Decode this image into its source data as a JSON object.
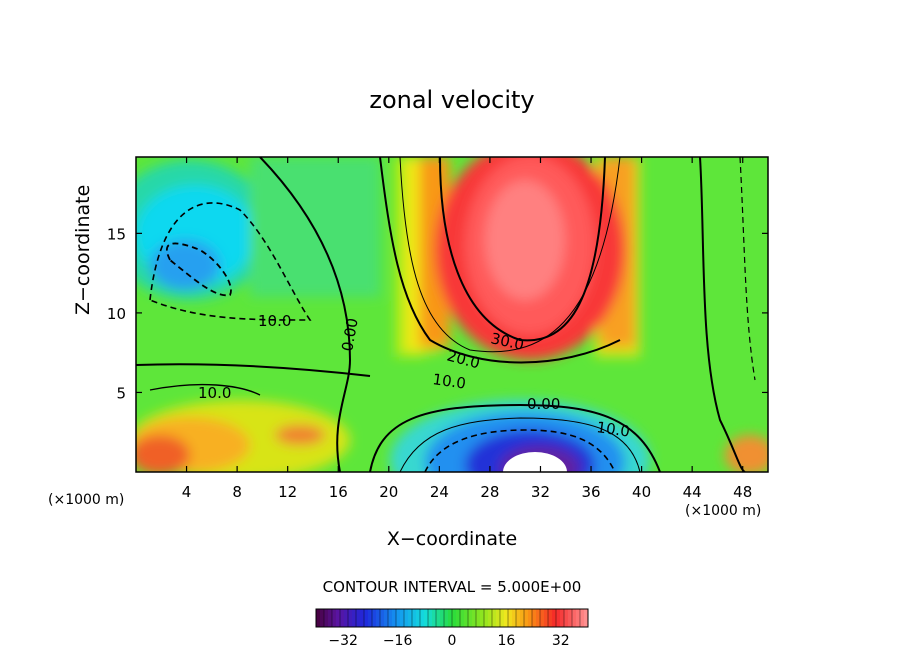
{
  "chart_data": {
    "type": "contour",
    "title": "zonal velocity",
    "xlabel": "X−coordinate",
    "ylabel": "Z−coordinate",
    "x_unit_label": "(×1000 m)",
    "z_unit_label": "(×1000 m)",
    "xlim": [
      0,
      50
    ],
    "ylim": [
      0,
      19.8
    ],
    "x_ticks": [
      "4",
      "8",
      "12",
      "16",
      "20",
      "24",
      "28",
      "32",
      "36",
      "40",
      "44",
      "48"
    ],
    "y_ticks": [
      "5",
      "10",
      "15"
    ],
    "contour_interval_label": "CONTOUR INTERVAL = 5.000E+00",
    "contour_interval": 5,
    "contour_labels": [
      "10.0",
      "0.00",
      "10.0",
      "10.0",
      "20.0",
      "30.0",
      "0.00",
      "10.0"
    ],
    "colorbar": {
      "range": [
        -40,
        40
      ],
      "ticks": [
        "−32",
        "−16",
        "0",
        "16",
        "32"
      ]
    },
    "features": [
      {
        "name": "upper jet maximum",
        "x": 30,
        "z": 13,
        "value": 37
      },
      {
        "name": "lower jet minimum",
        "x": 32,
        "z": 0.5,
        "value": -42
      },
      {
        "name": "upper-left negative core",
        "x": 6,
        "z": 13,
        "value": -14
      },
      {
        "name": "lower-left positive core",
        "x": 4,
        "z": 2,
        "value": 24
      }
    ]
  }
}
